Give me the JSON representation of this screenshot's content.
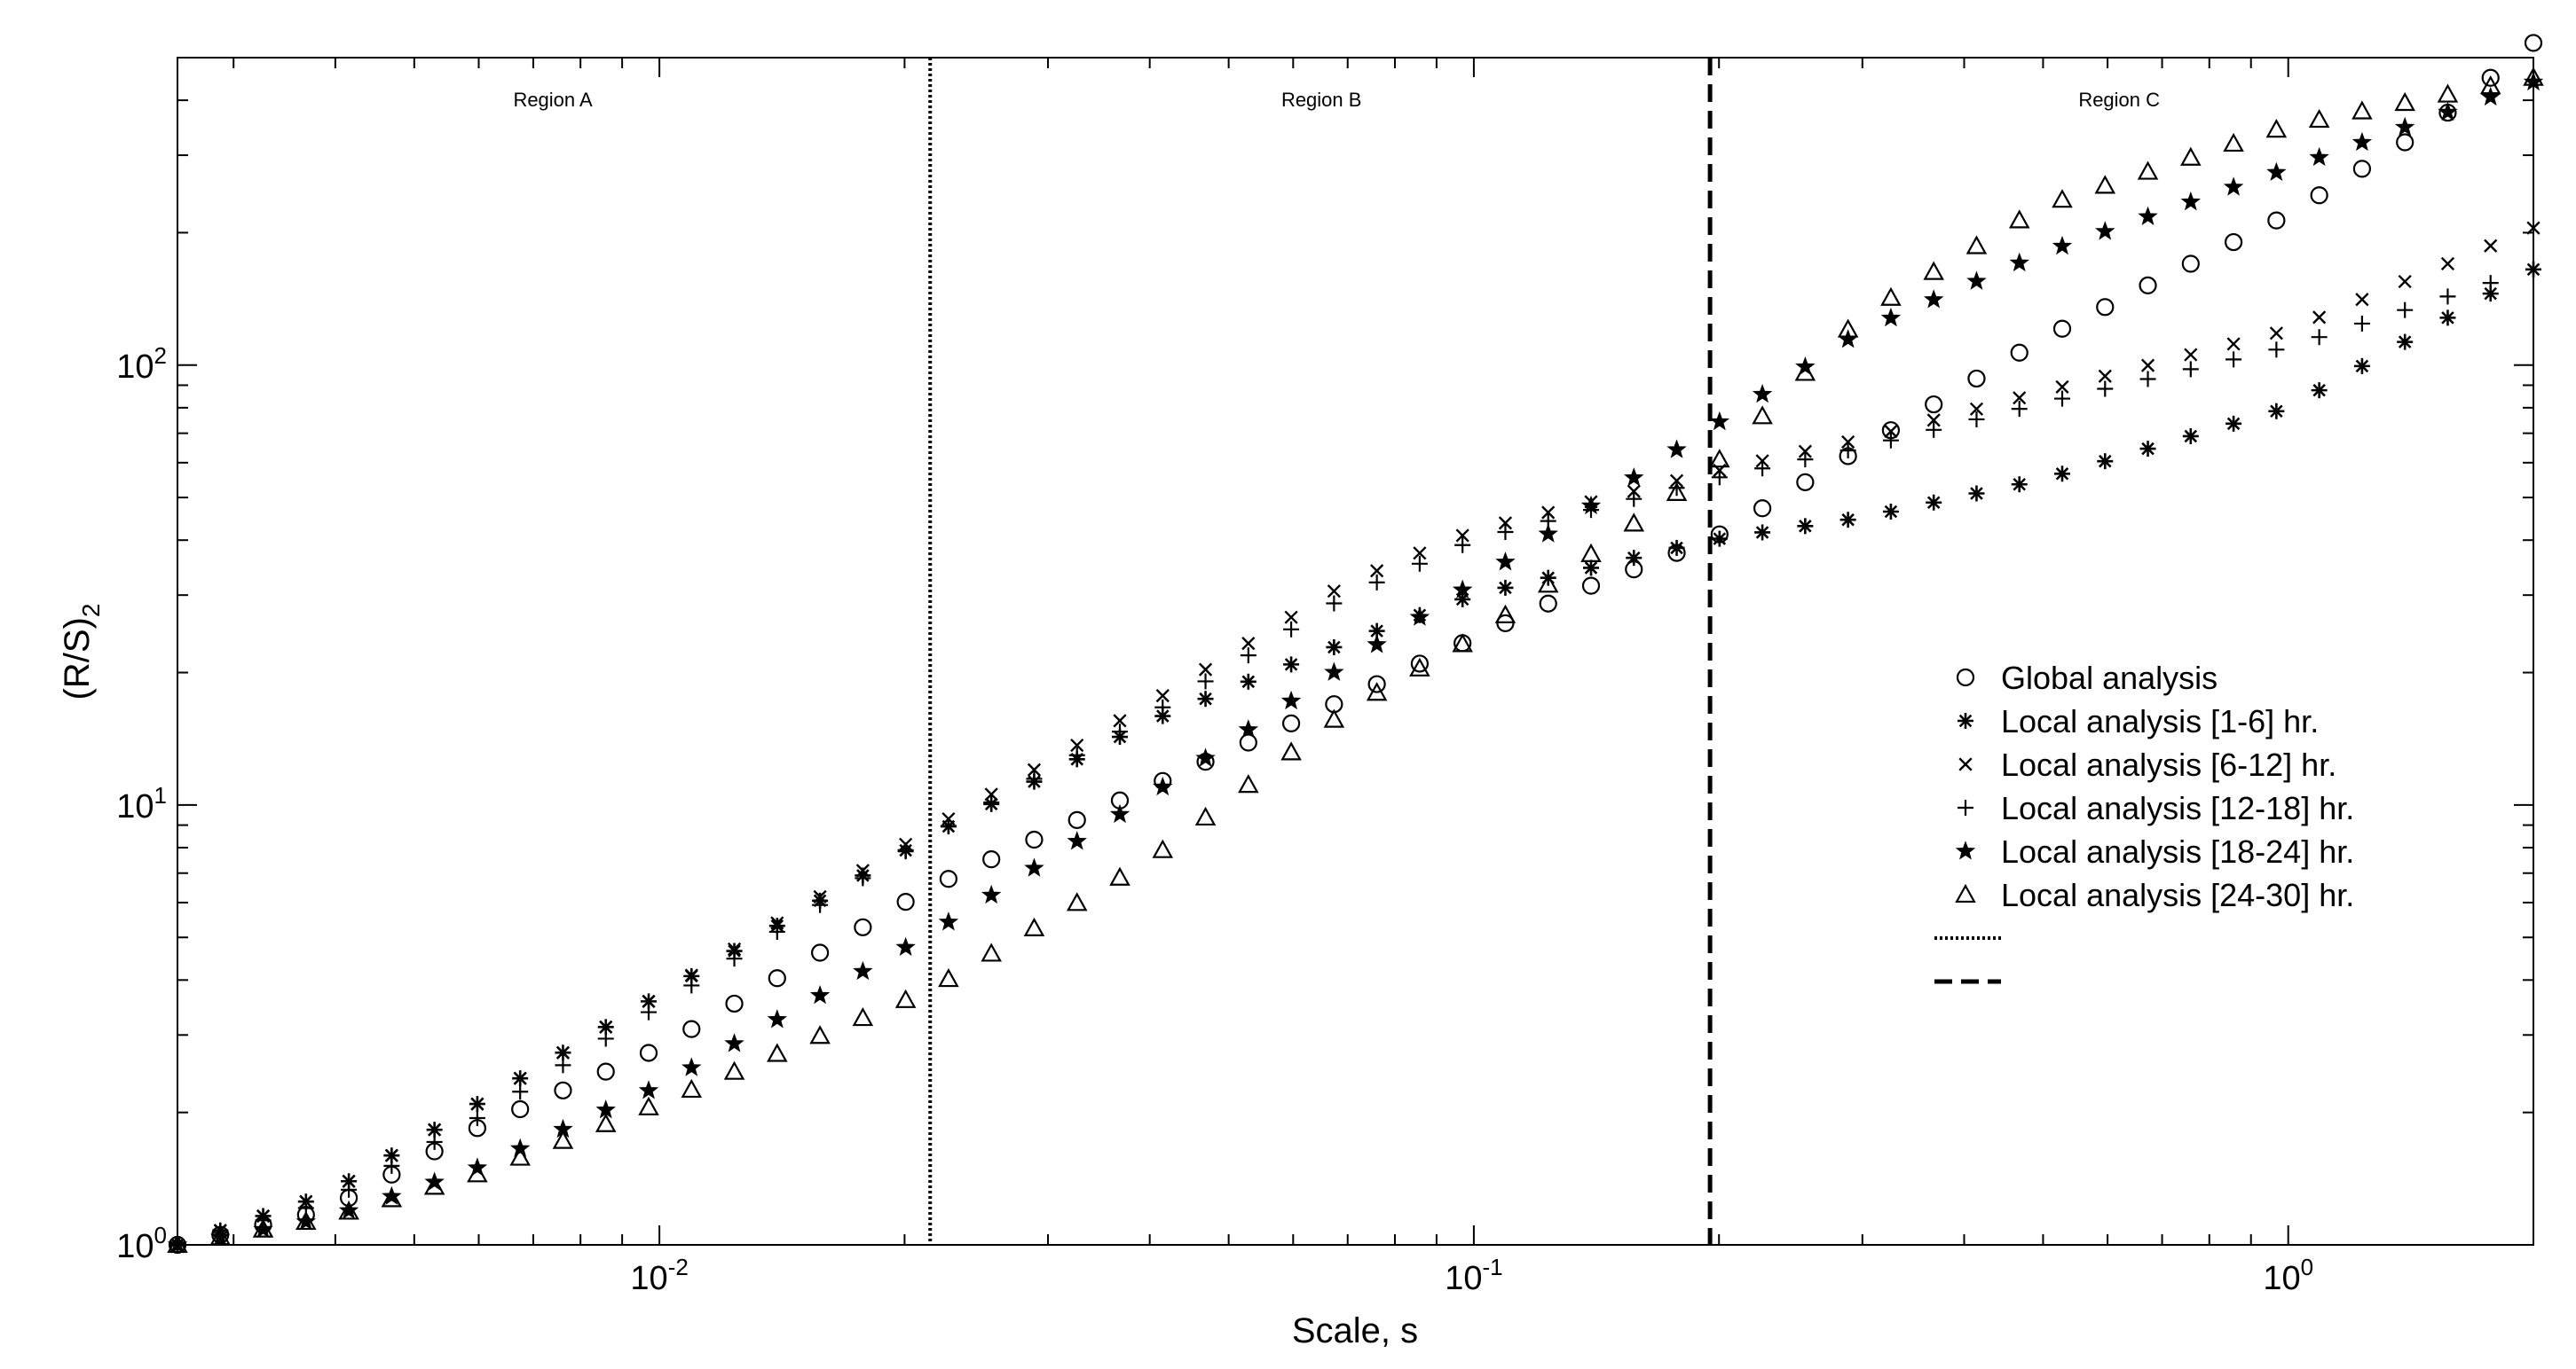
{
  "chart_data": {
    "type": "scatter",
    "xscale": "log",
    "yscale": "log",
    "xlabel": "Scale, s",
    "ylabel": "(R/S)",
    "ylabel_sub": "2",
    "xlim": [
      0.00256,
      2.0
    ],
    "ylim": [
      1,
      500
    ],
    "x_ticks": [
      {
        "value": 0.01,
        "base": "10",
        "exp": "-2"
      },
      {
        "value": 0.1,
        "base": "10",
        "exp": "-1"
      },
      {
        "value": 1,
        "base": "10",
        "exp": "0"
      }
    ],
    "y_ticks": [
      {
        "value": 1,
        "base": "10",
        "exp": "0"
      },
      {
        "value": 10,
        "base": "10",
        "exp": "1"
      },
      {
        "value": 100,
        "base": "10",
        "exp": "2"
      }
    ],
    "vlines": [
      {
        "x": 0.0215,
        "style": "dotted"
      },
      {
        "x": 0.195,
        "style": "dashed"
      }
    ],
    "regions": [
      {
        "label": "Region A",
        "x": 0.0074
      },
      {
        "label": "Region B",
        "x": 0.065
      },
      {
        "label": "Region C",
        "x": 0.62
      }
    ],
    "legend_position": "center-right",
    "series": [
      {
        "name": "Global analysis",
        "marker": "circle",
        "anchors": [
          [
            0.00256,
            1.0
          ],
          [
            0.0039,
            1.2
          ],
          [
            0.006,
            1.85
          ],
          [
            0.01,
            2.8
          ],
          [
            0.0215,
            6.5
          ],
          [
            0.04,
            11
          ],
          [
            0.07,
            17.5
          ],
          [
            0.1,
            24
          ],
          [
            0.13,
            30
          ],
          [
            0.195,
            40
          ],
          [
            0.3,
            65
          ],
          [
            0.5,
            115
          ],
          [
            1.0,
            220
          ],
          [
            1.5,
            350
          ],
          [
            2.0,
            540
          ]
        ]
      },
      {
        "name": "Local analysis [1-6] hr.",
        "marker": "asterisk",
        "anchors": [
          [
            0.00256,
            1.0
          ],
          [
            0.0039,
            1.3
          ],
          [
            0.006,
            2.1
          ],
          [
            0.01,
            3.7
          ],
          [
            0.0215,
            8.5
          ],
          [
            0.04,
            15.5
          ],
          [
            0.07,
            23.5
          ],
          [
            0.1,
            30
          ],
          [
            0.195,
            40
          ],
          [
            0.3,
            45
          ],
          [
            0.5,
            55
          ],
          [
            1.0,
            80
          ],
          [
            2.0,
            165
          ]
        ]
      },
      {
        "name": "Local analysis [6-12] hr.",
        "marker": "x",
        "anchors": [
          [
            0.00256,
            1.0
          ],
          [
            0.0039,
            1.3
          ],
          [
            0.006,
            2.1
          ],
          [
            0.01,
            3.7
          ],
          [
            0.0215,
            8.8
          ],
          [
            0.04,
            17
          ],
          [
            0.07,
            32
          ],
          [
            0.1,
            42
          ],
          [
            0.195,
            57
          ],
          [
            0.3,
            68
          ],
          [
            0.5,
            87
          ],
          [
            1.0,
            120
          ],
          [
            2.0,
            205
          ]
        ]
      },
      {
        "name": "Local analysis [12-18] hr.",
        "marker": "plus",
        "anchors": [
          [
            0.00256,
            1.0
          ],
          [
            0.0039,
            1.25
          ],
          [
            0.006,
            1.95
          ],
          [
            0.01,
            3.5
          ],
          [
            0.0215,
            8.5
          ],
          [
            0.04,
            16
          ],
          [
            0.07,
            30
          ],
          [
            0.1,
            40
          ],
          [
            0.195,
            55
          ],
          [
            0.3,
            65
          ],
          [
            0.5,
            82
          ],
          [
            1.0,
            110
          ],
          [
            2.0,
            165
          ]
        ]
      },
      {
        "name": "Local analysis [18-24] hr.",
        "marker": "star",
        "anchors": [
          [
            0.00256,
            1.0
          ],
          [
            0.0039,
            1.15
          ],
          [
            0.006,
            1.5
          ],
          [
            0.01,
            2.3
          ],
          [
            0.0215,
            5.1
          ],
          [
            0.04,
            10.5
          ],
          [
            0.07,
            21
          ],
          [
            0.1,
            32
          ],
          [
            0.195,
            72
          ],
          [
            0.3,
            120
          ],
          [
            0.5,
            180
          ],
          [
            1.0,
            280
          ],
          [
            2.0,
            440
          ]
        ]
      },
      {
        "name": "Local analysis [24-30] hr.",
        "marker": "triangle",
        "anchors": [
          [
            0.00256,
            1.0
          ],
          [
            0.0039,
            1.15
          ],
          [
            0.006,
            1.45
          ],
          [
            0.01,
            2.1
          ],
          [
            0.0215,
            3.8
          ],
          [
            0.04,
            7.5
          ],
          [
            0.07,
            16.5
          ],
          [
            0.1,
            24
          ],
          [
            0.195,
            58
          ],
          [
            0.3,
            130
          ],
          [
            0.5,
            230
          ],
          [
            1.0,
            350
          ],
          [
            2.0,
            450
          ]
        ]
      }
    ],
    "legend_extra": [
      {
        "style": "dotted",
        "label": ""
      },
      {
        "style": "dashed",
        "label": ""
      }
    ]
  }
}
